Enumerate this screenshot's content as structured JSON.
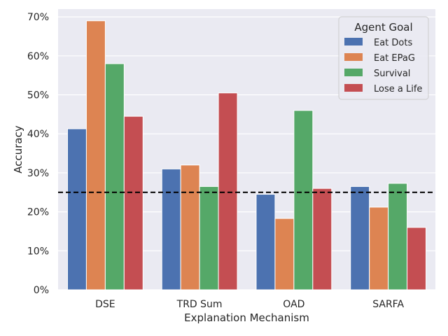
{
  "chart_data": {
    "type": "bar",
    "title": "",
    "xlabel": "Explanation Mechanism",
    "ylabel": "Accuracy",
    "categories": [
      "DSE",
      "TRD Sum",
      "OAD",
      "SARFA"
    ],
    "series": [
      {
        "name": "Eat Dots",
        "color": "#4c72b0",
        "values": [
          0.413,
          0.31,
          0.245,
          0.265
        ]
      },
      {
        "name": "Eat EPaG",
        "color": "#dd8452",
        "values": [
          0.69,
          0.32,
          0.183,
          0.212
        ]
      },
      {
        "name": "Survival",
        "color": "#55a868",
        "values": [
          0.58,
          0.265,
          0.46,
          0.273
        ]
      },
      {
        "name": "Lose a Life",
        "color": "#c44e52",
        "values": [
          0.445,
          0.505,
          0.26,
          0.16
        ]
      }
    ],
    "ylim": [
      0,
      0.72
    ],
    "yticks": [
      0,
      0.1,
      0.2,
      0.3,
      0.4,
      0.5,
      0.6,
      0.7
    ],
    "ytick_labels": [
      "0%",
      "10%",
      "20%",
      "30%",
      "40%",
      "50%",
      "60%",
      "70%"
    ],
    "reference_line": {
      "value": 0.25,
      "style": "dashed",
      "color": "#000000"
    },
    "legend": {
      "title": "Agent Goal",
      "placement": "top-right"
    },
    "grid": true,
    "background": "#eaeaf2"
  }
}
